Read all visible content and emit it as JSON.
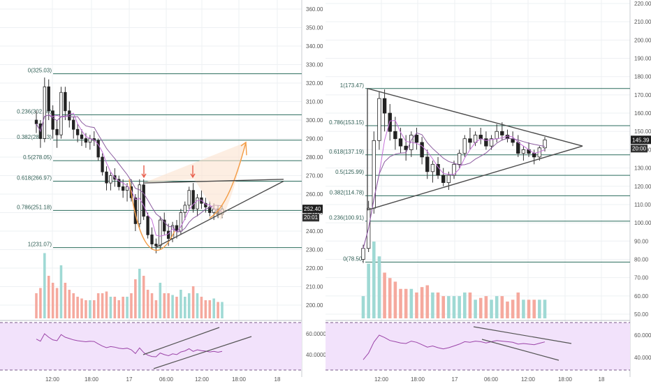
{
  "colors": {
    "up": "#5fb3ad",
    "down": "#f07c6b",
    "up_vol": "#9fd9d4",
    "down_vol": "#f5a99e",
    "ma1": "#c46fd9",
    "ma2": "#8a5a9e",
    "fib": "#2a6b5c",
    "trend": "#4a4a4a",
    "orange": "#f39c45",
    "arrow": "#e85c4a",
    "rsi_line": "#9b44a8",
    "rsi_bg": "#f2e2fb",
    "price_tag": "#1e1e1e",
    "grid": "#eef0f3"
  },
  "charts": [
    {
      "id": "left",
      "axis_ticks": [
        "360.00",
        "350.00",
        "340.00",
        "330.00",
        "320.00",
        "310.00",
        "300.00",
        "290.00",
        "280.00",
        "270.00",
        "260.00",
        "250.00",
        "240.00",
        "230.00",
        "220.00",
        "210.00",
        "200.00"
      ],
      "axis_values": [
        360,
        350,
        340,
        330,
        320,
        310,
        300,
        290,
        280,
        270,
        260,
        250,
        240,
        230,
        220,
        210,
        200
      ],
      "rsi_ticks": [
        "60.0000",
        "40.0000"
      ],
      "rsi_values": [
        60,
        40
      ],
      "time_ticks": [
        "12:00",
        "18:00",
        "17",
        "06:00",
        "12:00",
        "18:00",
        "18"
      ],
      "last_price": "252.40",
      "countdown": "20:01",
      "fib_levels": [
        {
          "label": "0(325.03)",
          "value": 325.03
        },
        {
          "label": "0.236(302.86)",
          "value": 302.86
        },
        {
          "label": "0.382(289.13)",
          "value": 289.13
        },
        {
          "label": "0.5(278.05)",
          "value": 278.05
        },
        {
          "label": "0.618(266.97)",
          "value": 266.97
        },
        {
          "label": "0.786(251.18)",
          "value": 251.18
        },
        {
          "label": "1(231.07)",
          "value": 231.07
        }
      ]
    },
    {
      "id": "right",
      "axis_ticks": [
        "220.00",
        "210.00",
        "200.00",
        "190.00",
        "180.00",
        "170.00",
        "160.00",
        "150.00",
        "140.00",
        "130.00",
        "120.00",
        "110.00",
        "100.00",
        "90.00",
        "80.00",
        "70.00",
        "60.00",
        "50.00"
      ],
      "axis_values": [
        220,
        210,
        200,
        190,
        180,
        170,
        160,
        150,
        140,
        130,
        120,
        110,
        100,
        90,
        80,
        70,
        60,
        50
      ],
      "rsi_ticks": [
        "60.0000",
        "40.0000"
      ],
      "rsi_values": [
        60,
        40
      ],
      "time_ticks": [
        "12:00",
        "18:00",
        "17",
        "06:00",
        "12:00",
        "18:00",
        "18"
      ],
      "last_price": "145.39",
      "countdown": "20:00",
      "fib_levels": [
        {
          "label": "1(173.47)",
          "value": 173.47
        },
        {
          "label": "0.786(153.15)",
          "value": 153.15
        },
        {
          "label": "0.618(137.19)",
          "value": 137.19
        },
        {
          "label": "0.5(125.99)",
          "value": 125.99
        },
        {
          "label": "0.382(114.78)",
          "value": 114.78
        },
        {
          "label": "0.236(100.91)",
          "value": 100.91
        },
        {
          "label": "0(78.50)",
          "value": 78.5
        }
      ]
    }
  ],
  "chart_data": [
    {
      "type": "candlestick",
      "title": "",
      "ylim": [
        195,
        365
      ],
      "x_ticks": [
        "12:00",
        "18:00",
        "17",
        "06:00",
        "12:00",
        "18:00",
        "18"
      ],
      "last_price": 252.4,
      "fibonacci": [
        {
          "ratio": "0",
          "value": 325.03
        },
        {
          "ratio": "0.236",
          "value": 302.86
        },
        {
          "ratio": "0.382",
          "value": 289.13
        },
        {
          "ratio": "0.5",
          "value": 278.05
        },
        {
          "ratio": "0.618",
          "value": 266.97
        },
        {
          "ratio": "0.786",
          "value": 251.18
        },
        {
          "ratio": "1",
          "value": 231.07
        }
      ],
      "candles": [
        [
          300,
          305,
          293,
          298
        ],
        [
          298,
          300,
          285,
          290
        ],
        [
          290,
          323,
          288,
          318
        ],
        [
          318,
          322,
          300,
          305
        ],
        [
          305,
          308,
          290,
          295
        ],
        [
          295,
          300,
          285,
          292
        ],
        [
          292,
          318,
          290,
          315
        ],
        [
          315,
          318,
          300,
          305
        ],
        [
          305,
          310,
          296,
          300
        ],
        [
          300,
          302,
          290,
          295
        ],
        [
          295,
          298,
          288,
          292
        ],
        [
          292,
          295,
          286,
          290
        ],
        [
          290,
          293,
          285,
          288
        ],
        [
          288,
          292,
          284,
          290
        ],
        [
          290,
          294,
          286,
          289
        ],
        [
          289,
          290,
          278,
          280
        ],
        [
          280,
          282,
          270,
          272
        ],
        [
          272,
          275,
          262,
          266
        ],
        [
          266,
          272,
          262,
          270
        ],
        [
          270,
          274,
          264,
          268
        ],
        [
          268,
          270,
          262,
          264
        ],
        [
          264,
          268,
          258,
          262
        ],
        [
          262,
          266,
          256,
          264
        ],
        [
          264,
          268,
          256,
          258
        ],
        [
          258,
          260,
          240,
          244
        ],
        [
          244,
          268,
          242,
          265
        ],
        [
          265,
          268,
          246,
          248
        ],
        [
          248,
          250,
          236,
          238
        ],
        [
          238,
          242,
          230,
          233
        ],
        [
          233,
          236,
          228,
          232
        ],
        [
          232,
          248,
          230,
          246
        ],
        [
          246,
          250,
          238,
          240
        ],
        [
          240,
          244,
          232,
          236
        ],
        [
          236,
          245,
          234,
          243
        ],
        [
          243,
          246,
          236,
          240
        ],
        [
          240,
          252,
          238,
          250
        ],
        [
          250,
          256,
          246,
          254
        ],
        [
          254,
          264,
          252,
          262
        ],
        [
          262,
          266,
          250,
          252
        ],
        [
          252,
          260,
          248,
          258
        ],
        [
          258,
          262,
          252,
          255
        ],
        [
          255,
          258,
          250,
          253
        ],
        [
          253,
          256,
          248,
          250
        ],
        [
          250,
          255,
          246,
          252
        ],
        [
          252,
          254,
          247,
          249
        ],
        [
          249,
          254,
          247,
          252
        ]
      ],
      "annotations": [
        "rounded bottom (cup) with orange projection arrow",
        "ascending trend line",
        "resistance line",
        "two red down arrows at the rim highs"
      ],
      "rsi_channel": "ascending channel"
    },
    {
      "type": "candlestick",
      "title": "",
      "ylim": [
        45,
        225
      ],
      "x_ticks": [
        "12:00",
        "18:00",
        "17",
        "06:00",
        "12:00",
        "18:00",
        "18"
      ],
      "last_price": 145.39,
      "fibonacci": [
        {
          "ratio": "1",
          "value": 173.47
        },
        {
          "ratio": "0.786",
          "value": 153.15
        },
        {
          "ratio": "0.618",
          "value": 137.19
        },
        {
          "ratio": "0.5",
          "value": 125.99
        },
        {
          "ratio": "0.382",
          "value": 114.78
        },
        {
          "ratio": "0.236",
          "value": 100.91
        },
        {
          "ratio": "0",
          "value": 78.5
        }
      ],
      "candles": [
        [
          80,
          88,
          78,
          86
        ],
        [
          86,
          112,
          84,
          108
        ],
        [
          108,
          150,
          105,
          145
        ],
        [
          145,
          172,
          140,
          168
        ],
        [
          168,
          173,
          150,
          160
        ],
        [
          160,
          165,
          145,
          150
        ],
        [
          150,
          158,
          140,
          146
        ],
        [
          146,
          152,
          138,
          142
        ],
        [
          142,
          148,
          134,
          140
        ],
        [
          140,
          150,
          136,
          148
        ],
        [
          148,
          152,
          140,
          144
        ],
        [
          144,
          147,
          132,
          136
        ],
        [
          136,
          140,
          124,
          128
        ],
        [
          128,
          134,
          122,
          132
        ],
        [
          132,
          136,
          124,
          126
        ],
        [
          126,
          130,
          120,
          122
        ],
        [
          122,
          128,
          118,
          126
        ],
        [
          126,
          134,
          124,
          132
        ],
        [
          132,
          140,
          130,
          138
        ],
        [
          138,
          148,
          136,
          146
        ],
        [
          146,
          152,
          140,
          144
        ],
        [
          144,
          150,
          142,
          148
        ],
        [
          148,
          152,
          143,
          146
        ],
        [
          146,
          150,
          140,
          142
        ],
        [
          142,
          148,
          140,
          146
        ],
        [
          146,
          154,
          144,
          150
        ],
        [
          150,
          155,
          145,
          148
        ],
        [
          148,
          151,
          144,
          146
        ],
        [
          146,
          150,
          142,
          144
        ],
        [
          144,
          148,
          136,
          138
        ],
        [
          138,
          142,
          134,
          140
        ],
        [
          140,
          144,
          136,
          138
        ],
        [
          138,
          140,
          132,
          136
        ],
        [
          136,
          142,
          134,
          141
        ],
        [
          141,
          147,
          139,
          145.39
        ]
      ],
      "annotations": [
        "symmetrical triangle converging to the right"
      ],
      "rsi_channel": "descending channel"
    }
  ]
}
